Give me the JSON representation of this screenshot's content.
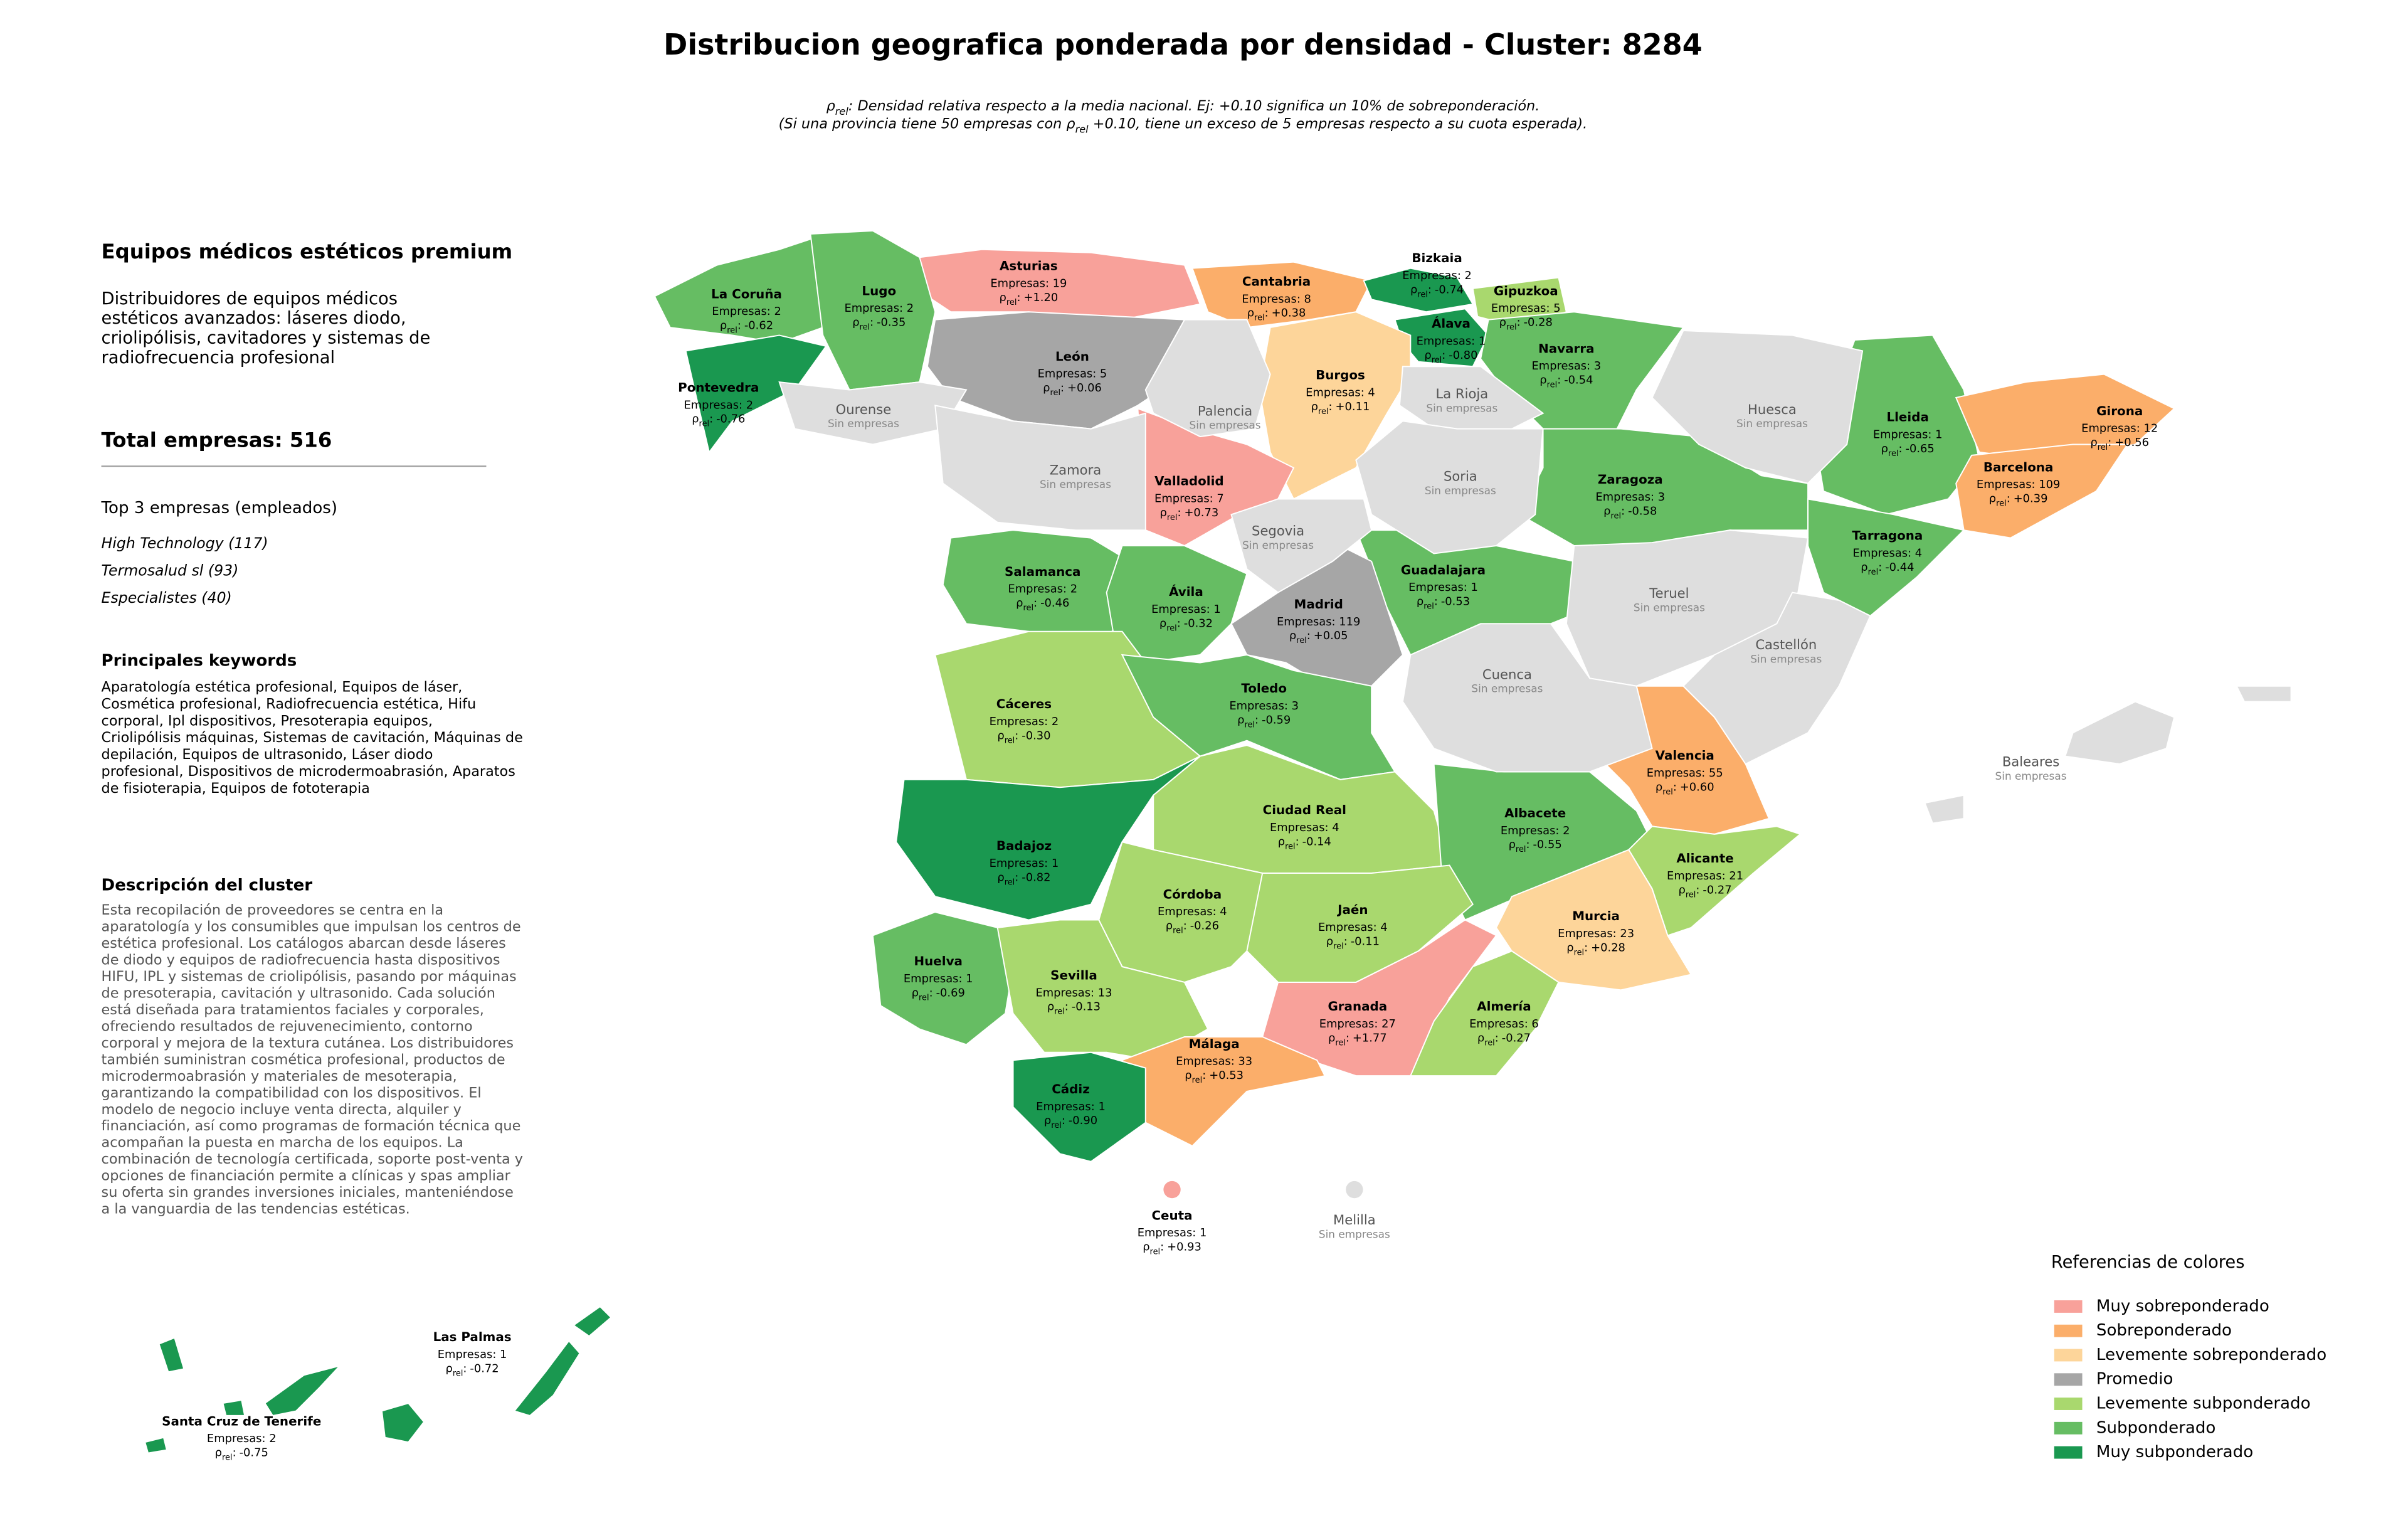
{
  "header": {
    "title": "Distribucion geografica ponderada por densidad - Cluster: 8284",
    "subtitle_lines": [
      [
        {
          "text": "ρ"
        },
        {
          "sub": "rel"
        },
        {
          "text": ": Densidad relativa respecto a la media nacional. Ej: +0.10 significa un 10% de sobreponderación."
        }
      ],
      [
        {
          "text": "(Si una provincia tiene 50 empresas con ρ"
        },
        {
          "sub": "rel"
        },
        {
          "text": " +0.10, tiene un exceso de 5 empresas respecto a su cuota esperada)."
        }
      ]
    ]
  },
  "sidebar": {
    "title": "Equipos médicos estéticos premium",
    "summary_lines": [
      "Distribuidores de equipos médicos",
      "estéticos avanzados: láseres diodo,",
      "criolipólisis, cavitadores y sistemas de",
      "radiofrecuencia profesional"
    ],
    "total": "Total empresas: 516",
    "top_heading": "Top 3 empresas (empleados)",
    "top_items": [
      "High Technology (117)",
      "Termosalud sl (93)",
      "Especialistes (40)"
    ],
    "keywords_heading": "Principales keywords",
    "keywords_lines": [
      "Aparatología estética profesional, Equipos de láser,",
      "Cosmética profesional, Radiofrecuencia estética, Hifu",
      "corporal, Ipl dispositivos, Presoterapia equipos,",
      "Criolipólisis máquinas, Sistemas de cavitación, Máquinas de",
      "depilación, Equipos de ultrasonido, Láser diodo",
      "profesional, Dispositivos de microdermoabrasión, Aparatos",
      "de fisioterapia, Equipos de fototerapia"
    ],
    "description_heading": "Descripción del cluster",
    "description_lines": [
      "Esta recopilación de proveedores se centra en la",
      "aparatología y los consumibles que impulsan los centros de",
      "estética profesional. Los catálogos abarcan desde láseres",
      "de diodo y equipos de radiofrecuencia hasta dispositivos",
      "HIFU, IPL y sistemas de criolipólisis, pasando por máquinas",
      "de presoterapia, cavitación y ultrasonido. Cada solución",
      "está diseñada para tratamientos faciales y corporales,",
      "ofreciendo resultados de rejuvenecimiento, contorno",
      "corporal y mejora de la textura cutánea. Los distribuidores",
      "también suministran cosmética profesional, productos de",
      "microdermoabrasión y materiales de mesoterapia,",
      "garantizando la compatibilidad con los dispositivos. El",
      "modelo de negocio incluye venta directa, alquiler y",
      "financiación, así como programas de formación técnica que",
      "acompañan la puesta en marcha de los equipos. La",
      "combinación de tecnología certificada, soporte post-venta y",
      "opciones de financiación permite a clínicas y spas ampliar",
      "su oferta sin grandes inversiones iniciales, manteniéndose",
      "a la vanguardia de las tendencias estéticas."
    ]
  },
  "map": {
    "rho_symbol": "ρ",
    "rho_subscript": "rel",
    "rho_separator": ":",
    "no_data_label": "Sin empresas",
    "no_data_color": "#dedede",
    "provinces": [
      {
        "name": "Asturias",
        "count": "Empresas: 19",
        "rho": "+1.20",
        "color": "#f8a19a"
      },
      {
        "name": "La Coruña",
        "count": "Empresas: 2",
        "rho": "-0.62",
        "color": "#66bd63"
      },
      {
        "name": "Lugo",
        "count": "Empresas: 2",
        "rho": "-0.35",
        "color": "#66bd63"
      },
      {
        "name": "Cantabria",
        "count": "Empresas: 8",
        "rho": "+0.38",
        "color": "#fbae6a"
      },
      {
        "name": "Bizkaia",
        "count": "Empresas: 2",
        "rho": "-0.74",
        "color": "#1a9850"
      },
      {
        "name": "Gipuzkoa",
        "count": "Empresas: 5",
        "rho": "-0.28",
        "color": "#a9d86e"
      },
      {
        "name": "Álava",
        "count": "Empresas: 1",
        "rho": "-0.80",
        "color": "#1a9850"
      },
      {
        "name": "Navarra",
        "count": "Empresas: 3",
        "rho": "-0.54",
        "color": "#66bd63"
      },
      {
        "name": "Pontevedra",
        "count": "Empresas: 2",
        "rho": "-0.76",
        "color": "#1a9850"
      },
      {
        "name": "León",
        "count": "Empresas: 5",
        "rho": "+0.06",
        "color": "#a6a6a6"
      },
      {
        "name": "Burgos",
        "count": "Empresas: 4",
        "rho": "+0.11",
        "color": "#fdd59a"
      },
      {
        "name": "Lleida",
        "count": "Empresas: 1",
        "rho": "-0.65",
        "color": "#66bd63"
      },
      {
        "name": "Girona",
        "count": "Empresas: 12",
        "rho": "+0.56",
        "color": "#fbae6a"
      },
      {
        "name": "Barcelona",
        "count": "Empresas: 109",
        "rho": "+0.39",
        "color": "#fbae6a"
      },
      {
        "name": "Zaragoza",
        "count": "Empresas: 3",
        "rho": "-0.58",
        "color": "#66bd63"
      },
      {
        "name": "Valladolid",
        "count": "Empresas: 7",
        "rho": "+0.73",
        "color": "#f8a19a"
      },
      {
        "name": "Tarragona",
        "count": "Empresas: 4",
        "rho": "-0.44",
        "color": "#66bd63"
      },
      {
        "name": "Salamanca",
        "count": "Empresas: 2",
        "rho": "-0.46",
        "color": "#66bd63"
      },
      {
        "name": "Guadalajara",
        "count": "Empresas: 1",
        "rho": "-0.53",
        "color": "#66bd63"
      },
      {
        "name": "Ávila",
        "count": "Empresas: 1",
        "rho": "-0.32",
        "color": "#66bd63"
      },
      {
        "name": "Madrid",
        "count": "Empresas: 119",
        "rho": "+0.05",
        "color": "#a6a6a6"
      },
      {
        "name": "Cáceres",
        "count": "Empresas: 2",
        "rho": "-0.30",
        "color": "#a9d86e"
      },
      {
        "name": "Toledo",
        "count": "Empresas: 3",
        "rho": "-0.59",
        "color": "#66bd63"
      },
      {
        "name": "Valencia",
        "count": "Empresas: 55",
        "rho": "+0.60",
        "color": "#fbae6a"
      },
      {
        "name": "Ciudad Real",
        "count": "Empresas: 4",
        "rho": "-0.14",
        "color": "#a9d86e"
      },
      {
        "name": "Albacete",
        "count": "Empresas: 2",
        "rho": "-0.55",
        "color": "#66bd63"
      },
      {
        "name": "Badajoz",
        "count": "Empresas: 1",
        "rho": "-0.82",
        "color": "#1a9850"
      },
      {
        "name": "Alicante",
        "count": "Empresas: 21",
        "rho": "-0.27",
        "color": "#a9d86e"
      },
      {
        "name": "Córdoba",
        "count": "Empresas: 4",
        "rho": "-0.26",
        "color": "#a9d86e"
      },
      {
        "name": "Jaén",
        "count": "Empresas: 4",
        "rho": "-0.11",
        "color": "#a9d86e"
      },
      {
        "name": "Murcia",
        "count": "Empresas: 23",
        "rho": "+0.28",
        "color": "#fdd59a"
      },
      {
        "name": "Huelva",
        "count": "Empresas: 1",
        "rho": "-0.69",
        "color": "#66bd63"
      },
      {
        "name": "Sevilla",
        "count": "Empresas: 13",
        "rho": "-0.13",
        "color": "#a9d86e"
      },
      {
        "name": "Granada",
        "count": "Empresas: 27",
        "rho": "+1.77",
        "color": "#f8a19a"
      },
      {
        "name": "Almería",
        "count": "Empresas: 6",
        "rho": "-0.27",
        "color": "#a9d86e"
      },
      {
        "name": "Málaga",
        "count": "Empresas: 33",
        "rho": "+0.53",
        "color": "#fbae6a"
      },
      {
        "name": "Cádiz",
        "count": "Empresas: 1",
        "rho": "-0.90",
        "color": "#1a9850"
      },
      {
        "name": "Ceuta",
        "count": "Empresas: 1",
        "rho": "+0.93",
        "color": "#f8a19a"
      },
      {
        "name": "Las Palmas",
        "count": "Empresas: 1",
        "rho": "-0.72",
        "color": "#1a9850"
      },
      {
        "name": "Santa Cruz de Tenerife",
        "count": "Empresas: 2",
        "rho": "-0.75",
        "color": "#1a9850"
      },
      {
        "name": "Ourense"
      },
      {
        "name": "Palencia"
      },
      {
        "name": "La Rioja"
      },
      {
        "name": "Huesca"
      },
      {
        "name": "Zamora"
      },
      {
        "name": "Soria"
      },
      {
        "name": "Segovia"
      },
      {
        "name": "Teruel"
      },
      {
        "name": "Castellón"
      },
      {
        "name": "Cuenca"
      },
      {
        "name": "Baleares"
      },
      {
        "name": "Melilla"
      }
    ]
  },
  "legend": {
    "title": "Referencias de colores",
    "items": [
      {
        "name": "Muy sobreponderado",
        "color": "#f8a19a"
      },
      {
        "name": "Sobreponderado",
        "color": "#fbae6a"
      },
      {
        "name": "Levemente sobreponderado",
        "color": "#fdd59a"
      },
      {
        "name": "Promedio",
        "color": "#a6a6a6"
      },
      {
        "name": "Levemente subponderado",
        "color": "#a9d86e"
      },
      {
        "name": "Subponderado",
        "color": "#66bd63"
      },
      {
        "name": "Muy subponderado",
        "color": "#1a9850"
      }
    ]
  }
}
